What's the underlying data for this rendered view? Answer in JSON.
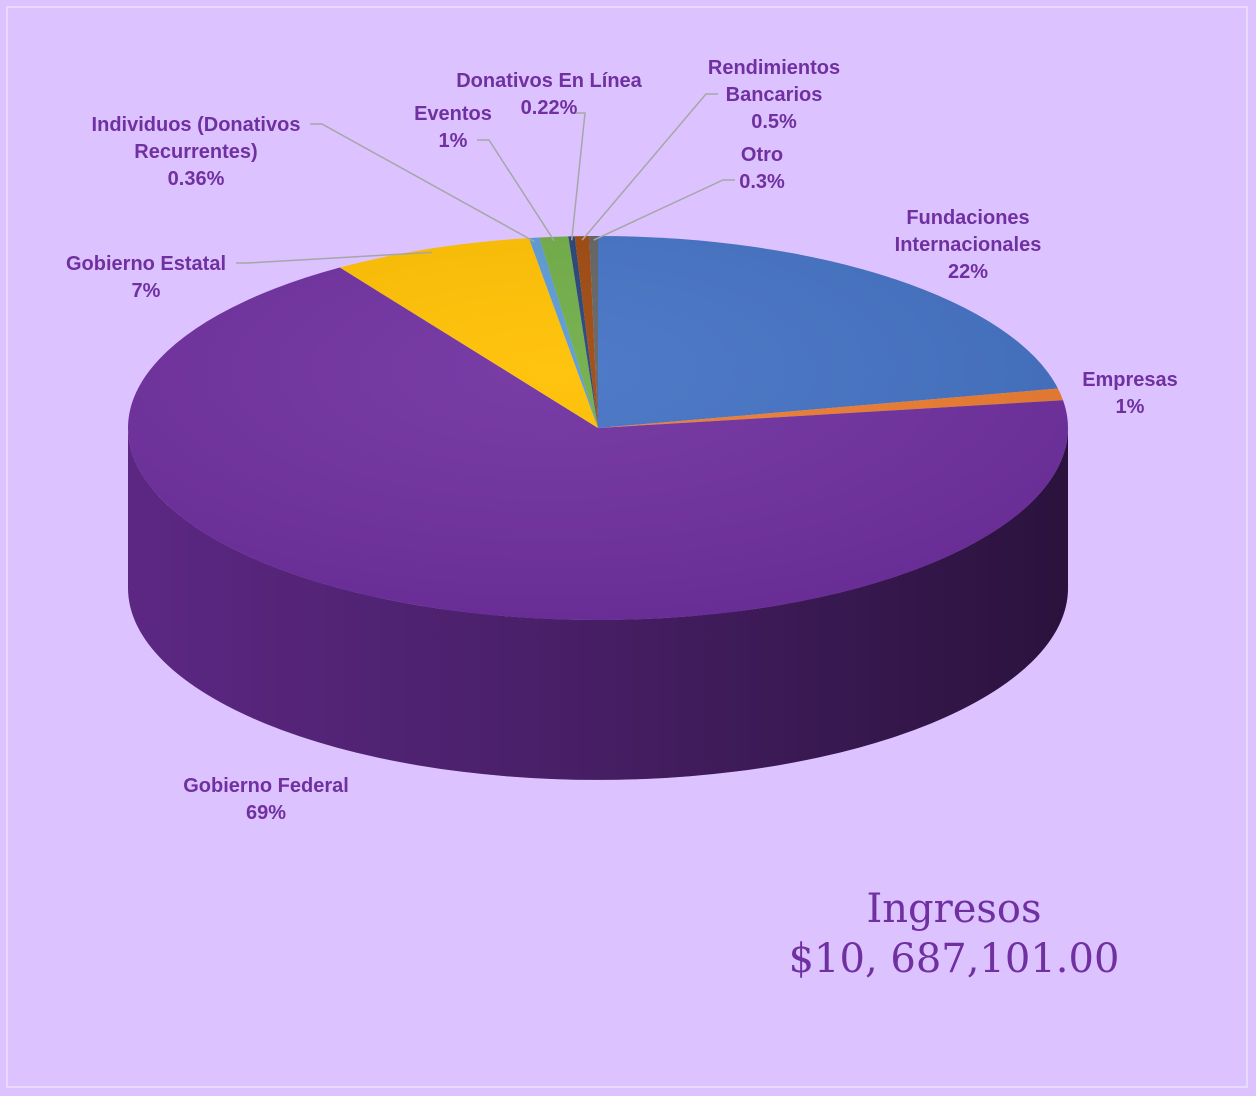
{
  "chart_data": {
    "type": "pie",
    "style": "3d",
    "slices": [
      {
        "label": [
          "Fundaciones",
          "Internacionales"
        ],
        "pct_text": "22%",
        "value": 22,
        "color": "#4472c4"
      },
      {
        "label": [
          "Empresas"
        ],
        "pct_text": "1%",
        "value": 1,
        "color": "#ed7d31"
      },
      {
        "label": [
          "Gobierno Federal"
        ],
        "pct_text": "69%",
        "value": 69,
        "color": "#7030a0"
      },
      {
        "label": [
          "Gobierno Estatal"
        ],
        "pct_text": "7%",
        "value": 7,
        "color": "#ffc000"
      },
      {
        "label": [
          "Individuos (Donativos",
          "Recurrentes)"
        ],
        "pct_text": "0.36%",
        "value": 0.36,
        "color": "#5b9bd5"
      },
      {
        "label": [
          "Eventos"
        ],
        "pct_text": "1%",
        "value": 1,
        "color": "#70ad47"
      },
      {
        "label": [
          "Donativos En Línea"
        ],
        "pct_text": "0.22%",
        "value": 0.22,
        "color": "#264478"
      },
      {
        "label": [
          "Rendimientos",
          "Bancarios"
        ],
        "pct_text": "0.5%",
        "value": 0.5,
        "color": "#9e480e"
      },
      {
        "label": [
          "Otro"
        ],
        "pct_text": "0.3%",
        "value": 0.3,
        "color": "#636363"
      }
    ]
  },
  "summary": {
    "title": "Ingresos",
    "amount": "$10, 687,101.00"
  }
}
